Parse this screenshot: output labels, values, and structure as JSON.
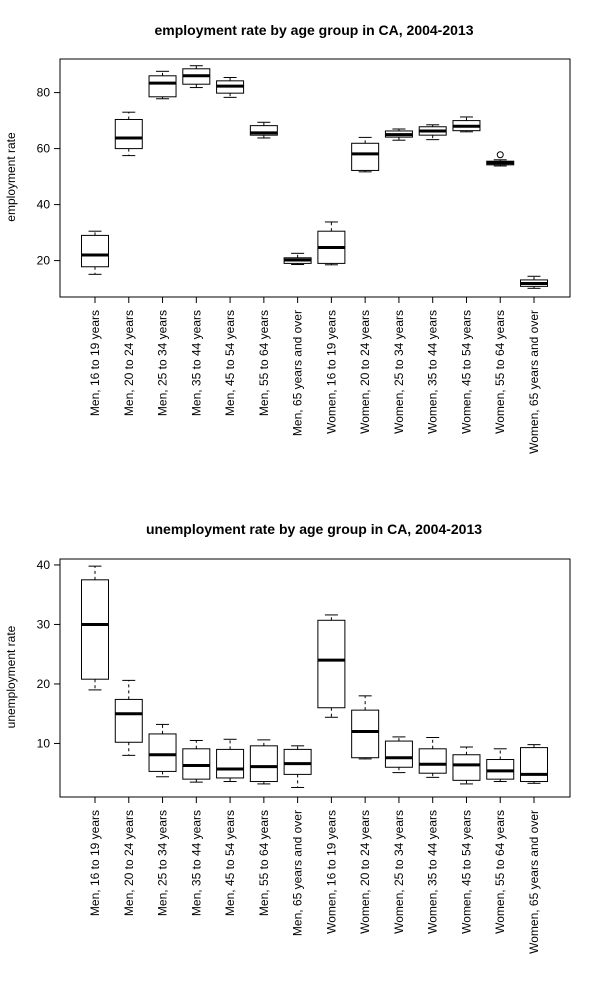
{
  "chart_data": [
    {
      "type": "boxplot",
      "title": "employment rate by age group in CA, 2004-2013",
      "xlabel": "",
      "ylabel": "employment rate",
      "ylim": [
        7,
        92
      ],
      "yticks": [
        20,
        40,
        60,
        80
      ],
      "categories": [
        "Men, 16 to 19 years",
        "Men, 20 to 24 years",
        "Men, 25 to 34 years",
        "Men, 35 to 44 years",
        "Men, 45 to 54 years",
        "Men, 55 to 64 years",
        "Men, 65 years and over",
        "Women, 16 to 19 years",
        "Women, 20 to 24 years",
        "Women, 25 to 34 years",
        "Women, 35 to 44 years",
        "Women, 45 to 54 years",
        "Women, 55 to 64 years",
        "Women, 65 years and over"
      ],
      "boxes": [
        {
          "min": 15.1,
          "q1": 17.8,
          "median": 22.0,
          "q3": 29.0,
          "max": 30.5,
          "outliers": []
        },
        {
          "min": 57.5,
          "q1": 60.0,
          "median": 63.8,
          "q3": 70.4,
          "max": 73.0,
          "outliers": []
        },
        {
          "min": 77.8,
          "q1": 78.5,
          "median": 83.4,
          "q3": 86.0,
          "max": 87.6,
          "outliers": []
        },
        {
          "min": 81.8,
          "q1": 83.0,
          "median": 86.0,
          "q3": 88.5,
          "max": 89.6,
          "outliers": []
        },
        {
          "min": 78.3,
          "q1": 79.8,
          "median": 82.3,
          "q3": 84.2,
          "max": 85.4,
          "outliers": []
        },
        {
          "min": 63.8,
          "q1": 64.8,
          "median": 65.6,
          "q3": 68.2,
          "max": 69.4,
          "outliers": []
        },
        {
          "min": 18.6,
          "q1": 19.0,
          "median": 20.2,
          "q3": 21.0,
          "max": 22.6,
          "outliers": []
        },
        {
          "min": 18.5,
          "q1": 19.0,
          "median": 24.7,
          "q3": 30.5,
          "max": 33.8,
          "outliers": []
        },
        {
          "min": 51.7,
          "q1": 52.2,
          "median": 58.1,
          "q3": 61.9,
          "max": 64.0,
          "outliers": []
        },
        {
          "min": 63.0,
          "q1": 64.1,
          "median": 65.0,
          "q3": 66.3,
          "max": 67.0,
          "outliers": []
        },
        {
          "min": 63.2,
          "q1": 64.8,
          "median": 66.3,
          "q3": 67.8,
          "max": 68.5,
          "outliers": []
        },
        {
          "min": 66.0,
          "q1": 66.4,
          "median": 68.0,
          "q3": 70.0,
          "max": 71.3,
          "outliers": []
        },
        {
          "min": 53.8,
          "q1": 54.2,
          "median": 54.9,
          "q3": 55.5,
          "max": 56.0,
          "outliers": [
            57.8
          ]
        },
        {
          "min": 10.1,
          "q1": 10.8,
          "median": 11.8,
          "q3": 13.1,
          "max": 14.4,
          "outliers": []
        }
      ]
    },
    {
      "type": "boxplot",
      "title": "unemployment rate by age group in CA, 2004-2013",
      "xlabel": "",
      "ylabel": "unemployment rate",
      "ylim": [
        1,
        41
      ],
      "yticks": [
        10,
        20,
        30,
        40
      ],
      "categories": [
        "Men, 16 to 19 years",
        "Men, 20 to 24 years",
        "Men, 25 to 34 years",
        "Men, 35 to 44 years",
        "Men, 45 to 54 years",
        "Men, 55 to 64 years",
        "Men, 65 years and over",
        "Women, 16 to 19 years",
        "Women, 20 to 24 years",
        "Women, 25 to 34 years",
        "Women, 35 to 44 years",
        "Women, 45 to 54 years",
        "Women, 55 to 64 years",
        "Women, 65 years and over"
      ],
      "boxes": [
        {
          "min": 19.0,
          "q1": 20.8,
          "median": 30.0,
          "q3": 37.5,
          "max": 39.8,
          "outliers": []
        },
        {
          "min": 8.0,
          "q1": 10.2,
          "median": 15.0,
          "q3": 17.4,
          "max": 20.6,
          "outliers": []
        },
        {
          "min": 4.4,
          "q1": 5.3,
          "median": 8.1,
          "q3": 11.6,
          "max": 13.2,
          "outliers": []
        },
        {
          "min": 3.5,
          "q1": 4.0,
          "median": 6.3,
          "q3": 9.1,
          "max": 10.5,
          "outliers": []
        },
        {
          "min": 3.6,
          "q1": 4.2,
          "median": 5.7,
          "q3": 9.0,
          "max": 10.7,
          "outliers": []
        },
        {
          "min": 3.2,
          "q1": 3.6,
          "median": 6.1,
          "q3": 9.6,
          "max": 10.6,
          "outliers": []
        },
        {
          "min": 2.6,
          "q1": 4.8,
          "median": 6.6,
          "q3": 9.0,
          "max": 9.6,
          "outliers": []
        },
        {
          "min": 14.4,
          "q1": 16.0,
          "median": 24.0,
          "q3": 30.7,
          "max": 31.6,
          "outliers": []
        },
        {
          "min": 7.4,
          "q1": 7.6,
          "median": 12.0,
          "q3": 15.6,
          "max": 18.0,
          "outliers": []
        },
        {
          "min": 5.1,
          "q1": 6.0,
          "median": 7.6,
          "q3": 10.4,
          "max": 11.1,
          "outliers": []
        },
        {
          "min": 4.3,
          "q1": 5.0,
          "median": 6.5,
          "q3": 9.1,
          "max": 11.0,
          "outliers": []
        },
        {
          "min": 3.2,
          "q1": 3.8,
          "median": 6.4,
          "q3": 8.1,
          "max": 9.4,
          "outliers": []
        },
        {
          "min": 3.6,
          "q1": 4.0,
          "median": 5.4,
          "q3": 7.3,
          "max": 9.1,
          "outliers": []
        },
        {
          "min": 3.3,
          "q1": 3.6,
          "median": 4.8,
          "q3": 9.3,
          "max": 9.8,
          "outliers": []
        }
      ]
    }
  ]
}
